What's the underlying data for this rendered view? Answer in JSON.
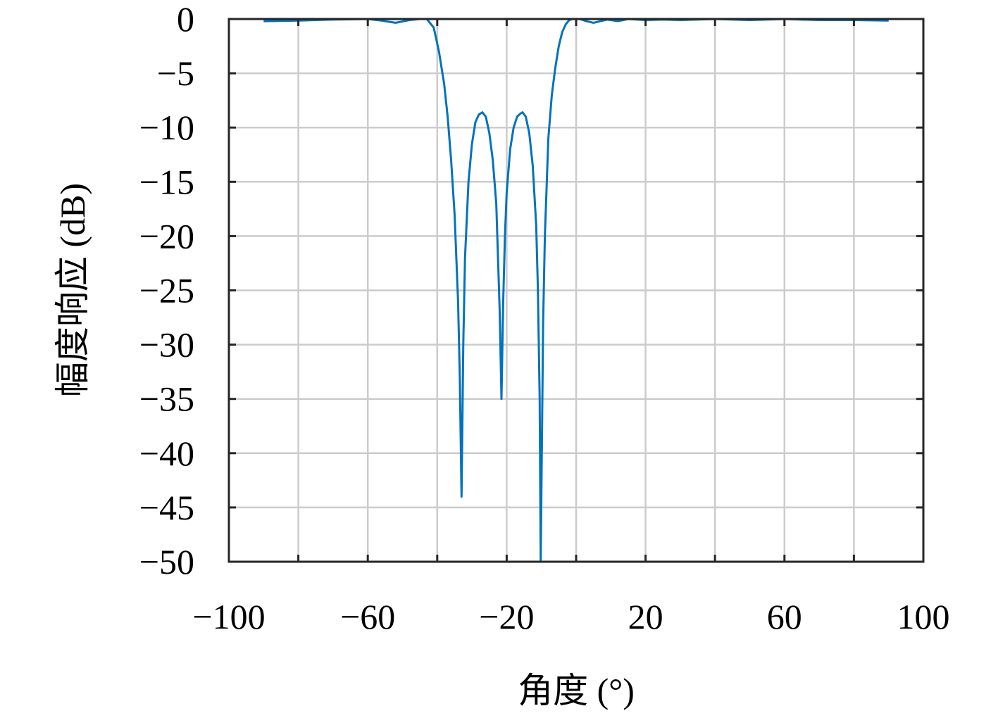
{
  "chart_data": {
    "type": "line",
    "xlabel": "角度 (°)",
    "ylabel": "幅度响应 (dB)",
    "xlim": [
      -100,
      100
    ],
    "ylim": [
      -50,
      0
    ],
    "xticks": [
      {
        "value": -100,
        "label": "−100"
      },
      {
        "value": -80,
        "label": null
      },
      {
        "value": -60,
        "label": "−60"
      },
      {
        "value": -40,
        "label": null
      },
      {
        "value": -20,
        "label": "−20"
      },
      {
        "value": 0,
        "label": null
      },
      20,
      {
        "value": 40,
        "label": null
      },
      60,
      {
        "value": 80,
        "label": null
      },
      100
    ],
    "yticks": [
      0,
      {
        "value": -5,
        "label": "−5"
      },
      {
        "value": -10,
        "label": "−10"
      },
      {
        "value": -15,
        "label": "−15"
      },
      {
        "value": -20,
        "label": "−20"
      },
      {
        "value": -25,
        "label": "−25"
      },
      {
        "value": -30,
        "label": "−30"
      },
      {
        "value": -35,
        "label": "−35"
      },
      {
        "value": -40,
        "label": "−40"
      },
      {
        "value": -45,
        "label": "−45"
      },
      {
        "value": -50,
        "label": "−50"
      }
    ],
    "grid": true,
    "x": [
      -90,
      -80,
      -70,
      -60,
      -56,
      -52,
      -48,
      -45,
      -43,
      -41,
      -39.5,
      -38,
      -37,
      -36,
      -35,
      -34,
      -33.5,
      -33,
      -32.5,
      -32,
      -31,
      -30,
      -29,
      -28,
      -27,
      -26,
      -25,
      -24,
      -23,
      -22.5,
      -22,
      -21.5,
      -21,
      -20.5,
      -20,
      -19,
      -18,
      -17,
      -16,
      -15.4,
      -14.5,
      -13.5,
      -12.5,
      -11.5,
      -11,
      -10.5,
      -10.2,
      -9.5,
      -9,
      -8,
      -7,
      -6,
      -5,
      -4,
      -3,
      -2,
      -1,
      1,
      3,
      5,
      7,
      9,
      12,
      15,
      20,
      25,
      30,
      40,
      50,
      60,
      70,
      80,
      90
    ],
    "series": [
      {
        "color": "#0072BD",
        "values": [
          -0.2,
          -0.15,
          -0.05,
          0,
          -0.15,
          -0.35,
          -0.1,
          0,
          0,
          -0.8,
          -3,
          -6,
          -9,
          -13,
          -18,
          -26,
          -33,
          -44,
          -30,
          -22,
          -15,
          -11.5,
          -9.5,
          -8.8,
          -8.6,
          -9,
          -10.5,
          -13,
          -17,
          -22,
          -27,
          -35,
          -26,
          -20,
          -16,
          -12,
          -10,
          -9,
          -8.7,
          -8.6,
          -9,
          -10.5,
          -13.5,
          -19,
          -25,
          -35,
          -50,
          -28,
          -20,
          -11,
          -7,
          -4.5,
          -2.5,
          -1.2,
          -0.5,
          -0.1,
          0,
          0,
          -0.2,
          -0.35,
          -0.2,
          -0.05,
          -0.2,
          0,
          -0.1,
          -0.05,
          -0.1,
          0,
          -0.1,
          0,
          -0.1,
          -0.1,
          -0.15
        ]
      }
    ]
  }
}
